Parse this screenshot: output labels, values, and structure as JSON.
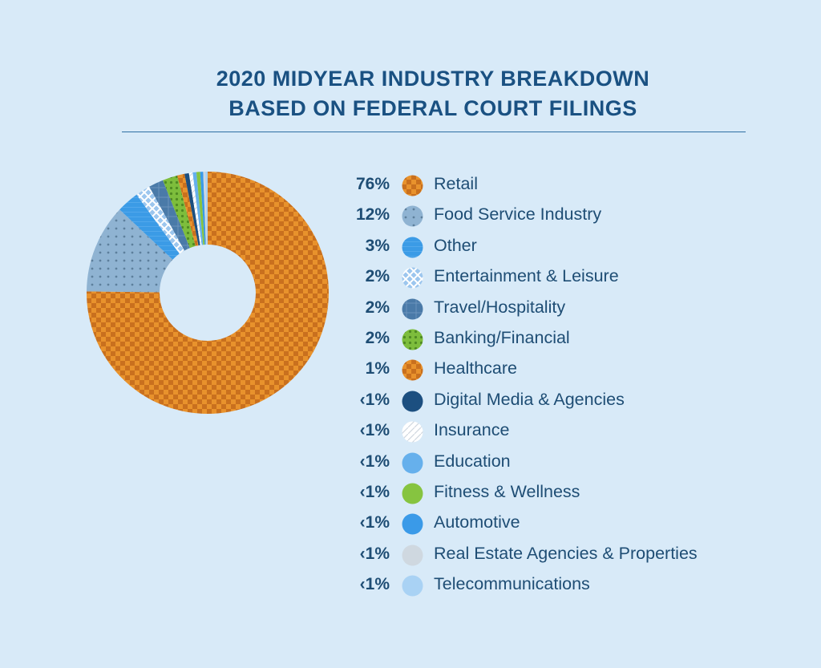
{
  "chart_data": {
    "type": "pie",
    "variant": "donut",
    "title_lines": [
      "2020 MIDYEAR INDUSTRY BREAKDOWN",
      "BASED ON FEDERAL COURT FILINGS"
    ],
    "slices": [
      {
        "pct_label": "76%",
        "label": "Retail",
        "value": 76,
        "color": "#e8922c",
        "pattern": "checker-orange"
      },
      {
        "pct_label": "12%",
        "label": "Food Service Industry",
        "value": 12,
        "color": "#8fb3d2",
        "pattern": "dots-gray"
      },
      {
        "pct_label": "3%",
        "label": "Other",
        "value": 3,
        "color": "#3b9be6",
        "pattern": "lines-blue"
      },
      {
        "pct_label": "2%",
        "label": "Entertainment & Leisure",
        "value": 2,
        "color": "#9cc6ee",
        "pattern": "cross-light"
      },
      {
        "pct_label": "2%",
        "label": "Travel/Hospitality",
        "value": 2,
        "color": "#4a7aa8",
        "pattern": "grid-steel"
      },
      {
        "pct_label": "2%",
        "label": "Banking/Financial",
        "value": 2,
        "color": "#7dbd3c",
        "pattern": "dots-green"
      },
      {
        "pct_label": "1%",
        "label": "Healthcare",
        "value": 1,
        "color": "#e8922c",
        "pattern": "checker-orange"
      },
      {
        "pct_label": "‹1%",
        "label": "Digital Media & Agencies",
        "value": 0.6,
        "color": "#1c4f80",
        "pattern": "solid"
      },
      {
        "pct_label": "‹1%",
        "label": "Insurance",
        "value": 0.5,
        "color": "#ffffff",
        "pattern": "dash-white"
      },
      {
        "pct_label": "‹1%",
        "label": "Education",
        "value": 0.5,
        "color": "#66b0ec",
        "pattern": "solid"
      },
      {
        "pct_label": "‹1%",
        "label": "Fitness & Wellness",
        "value": 0.5,
        "color": "#86c440",
        "pattern": "solid"
      },
      {
        "pct_label": "‹1%",
        "label": "Automotive",
        "value": 0.4,
        "color": "#3a9ae8",
        "pattern": "solid"
      },
      {
        "pct_label": "‹1%",
        "label": "Real Estate Agencies & Properties",
        "value": 0.3,
        "color": "#cfd8e0",
        "pattern": "solid"
      },
      {
        "pct_label": "‹1%",
        "label": "Telecommunications",
        "value": 0.3,
        "color": "#a9d2f4",
        "pattern": "solid"
      }
    ]
  }
}
